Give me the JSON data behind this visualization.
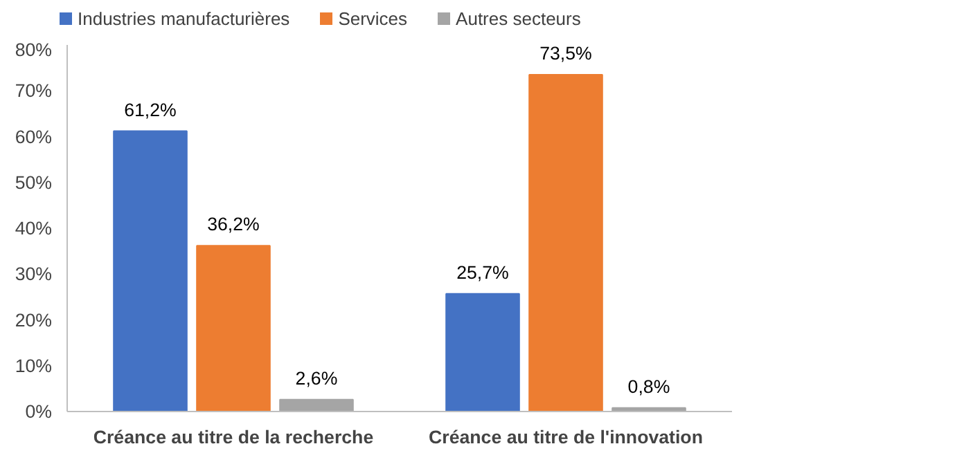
{
  "chart_data": {
    "type": "bar",
    "categories": [
      "Créance au titre de la recherche",
      "Créance au titre de l'innovation"
    ],
    "series": [
      {
        "name": "Industries manufacturières",
        "color": "#4472c4",
        "values": [
          61.2,
          25.7
        ],
        "value_labels": [
          "61,2%",
          "25,7%"
        ]
      },
      {
        "name": "Services",
        "color": "#ed7d31",
        "values": [
          36.2,
          73.5
        ],
        "value_labels": [
          "36,2%",
          "73,5%"
        ]
      },
      {
        "name": "Autres secteurs",
        "color": "#a5a5a5",
        "values": [
          2.6,
          0.8
        ],
        "value_labels": [
          "2,6%",
          "0,8%"
        ]
      }
    ],
    "ylim": [
      0,
      80
    ],
    "yticks": [
      {
        "value": 0,
        "label": "0%"
      },
      {
        "value": 10,
        "label": "10%"
      },
      {
        "value": 20,
        "label": "20%"
      },
      {
        "value": 30,
        "label": "30%"
      },
      {
        "value": 40,
        "label": "40%"
      },
      {
        "value": 50,
        "label": "50%"
      },
      {
        "value": 60,
        "label": "60%"
      },
      {
        "value": 70,
        "label": "70%"
      },
      {
        "value": 80,
        "label": "80%"
      }
    ],
    "legend": "top left"
  }
}
